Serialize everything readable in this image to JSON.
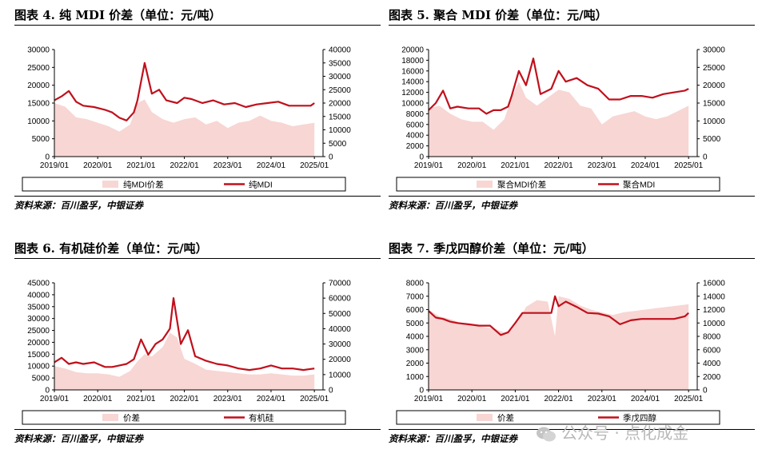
{
  "colors": {
    "area": "#f7d6d4",
    "line": "#c0101c",
    "text": "#000000"
  },
  "watermark": {
    "text": "公众号 · 点化成金",
    "icon": "wechat-icon"
  },
  "chart_data": [
    {
      "figure": "图表 4. 纯 MDI 价差（单位：元/吨）",
      "source": "资料来源：百川盈孚，中银证券",
      "type": "area+line",
      "x_ticks": [
        "2019/01",
        "2020/01",
        "2021/01",
        "2022/01",
        "2023/01",
        "2024/01",
        "2025/01"
      ],
      "left_axis": {
        "min": 0,
        "max": 30000,
        "ticks": [
          "0",
          "5000",
          "10000",
          "15000",
          "20000",
          "25000",
          "30000"
        ]
      },
      "right_axis": {
        "min": 0,
        "max": 40000,
        "ticks": [
          "0",
          "5000",
          "10000",
          "15000",
          "20000",
          "25000",
          "30000",
          "35000",
          "40000"
        ]
      },
      "series": [
        {
          "name": "纯MDI价差",
          "kind": "area",
          "axis": "left",
          "x": [
            "2019/01",
            "2019/04",
            "2019/07",
            "2019/10",
            "2020/01",
            "2020/04",
            "2020/07",
            "2020/10",
            "2020/12",
            "2021/02",
            "2021/04",
            "2021/07",
            "2021/10",
            "2022/01",
            "2022/04",
            "2022/07",
            "2022/10",
            "2023/01",
            "2023/04",
            "2023/07",
            "2023/10",
            "2024/01",
            "2024/04",
            "2024/07",
            "2024/10",
            "2025/01"
          ],
          "values": [
            15000,
            14000,
            11000,
            10500,
            9500,
            8500,
            7000,
            9000,
            15000,
            16000,
            12500,
            10500,
            9500,
            10500,
            11000,
            9000,
            10000,
            8000,
            9500,
            10000,
            11500,
            10000,
            9500,
            8500,
            9000,
            9500
          ]
        },
        {
          "name": "纯MDI",
          "kind": "line",
          "axis": "right",
          "x": [
            "2019/01",
            "2019/03",
            "2019/05",
            "2019/07",
            "2019/09",
            "2019/12",
            "2020/03",
            "2020/05",
            "2020/07",
            "2020/09",
            "2020/11",
            "2020/12",
            "2021/02",
            "2021/04",
            "2021/06",
            "2021/08",
            "2021/11",
            "2022/01",
            "2022/03",
            "2022/06",
            "2022/09",
            "2022/12",
            "2023/03",
            "2023/06",
            "2023/09",
            "2023/12",
            "2024/03",
            "2024/06",
            "2024/09",
            "2024/12",
            "2025/01"
          ],
          "values": [
            21000,
            22500,
            24500,
            20500,
            19000,
            18500,
            17500,
            16500,
            14500,
            13500,
            16500,
            21000,
            35000,
            23500,
            25000,
            21000,
            20000,
            22000,
            21500,
            20000,
            21000,
            19500,
            20000,
            18500,
            19500,
            20000,
            20500,
            19000,
            19000,
            19000,
            20000
          ]
        }
      ],
      "legend": [
        "纯MDI价差",
        "纯MDI"
      ]
    },
    {
      "figure": "图表 5. 聚合 MDI 价差（单位：元/吨）",
      "source": "资料来源：百川盈孚，中银证券",
      "type": "area+line",
      "x_ticks": [
        "2019/01",
        "2020/01",
        "2021/01",
        "2022/01",
        "2023/01",
        "2024/01",
        "2025/01"
      ],
      "left_axis": {
        "min": 0,
        "max": 20000,
        "ticks": [
          "0",
          "2000",
          "4000",
          "6000",
          "8000",
          "10000",
          "12000",
          "14000",
          "16000",
          "18000",
          "20000"
        ]
      },
      "right_axis": {
        "min": 0,
        "max": 30000,
        "ticks": [
          "0",
          "5000",
          "10000",
          "15000",
          "20000",
          "25000",
          "30000"
        ]
      },
      "series": [
        {
          "name": "聚合MDI价差",
          "kind": "area",
          "axis": "left",
          "x": [
            "2019/01",
            "2019/04",
            "2019/07",
            "2019/10",
            "2020/01",
            "2020/04",
            "2020/07",
            "2020/10",
            "2020/12",
            "2021/02",
            "2021/04",
            "2021/07",
            "2021/10",
            "2022/01",
            "2022/04",
            "2022/07",
            "2022/10",
            "2023/01",
            "2023/04",
            "2023/07",
            "2023/10",
            "2024/01",
            "2024/04",
            "2024/07",
            "2024/10",
            "2025/01"
          ],
          "values": [
            9000,
            9500,
            8000,
            7000,
            6500,
            6500,
            5000,
            7000,
            11000,
            14000,
            11000,
            9500,
            11000,
            12500,
            12000,
            9500,
            9000,
            6000,
            7500,
            8000,
            8500,
            7500,
            7000,
            7500,
            8500,
            9500
          ]
        },
        {
          "name": "聚合MDI",
          "kind": "line",
          "axis": "right",
          "x": [
            "2019/01",
            "2019/03",
            "2019/05",
            "2019/07",
            "2019/09",
            "2019/12",
            "2020/03",
            "2020/05",
            "2020/07",
            "2020/09",
            "2020/11",
            "2020/12",
            "2021/02",
            "2021/04",
            "2021/06",
            "2021/08",
            "2021/11",
            "2022/01",
            "2022/03",
            "2022/06",
            "2022/09",
            "2022/12",
            "2023/03",
            "2023/06",
            "2023/09",
            "2023/12",
            "2024/03",
            "2024/06",
            "2024/09",
            "2024/12",
            "2025/01"
          ],
          "values": [
            13000,
            15000,
            18500,
            13500,
            14000,
            13500,
            13500,
            12000,
            13000,
            13000,
            14000,
            17000,
            24000,
            20000,
            27500,
            17500,
            19000,
            24000,
            21000,
            22000,
            20000,
            19000,
            16000,
            16000,
            17000,
            17000,
            16500,
            17500,
            18000,
            18500,
            19000
          ]
        }
      ],
      "legend": [
        "聚合MDI价差",
        "聚合MDI"
      ]
    },
    {
      "figure": "图表 6. 有机硅价差（单位：元/吨）",
      "source": "资料来源：百川盈孚，中银证券",
      "type": "area+line",
      "x_ticks": [
        "2019/01",
        "2020/01",
        "2021/01",
        "2022/01",
        "2023/01",
        "2024/01",
        "2025/01"
      ],
      "left_axis": {
        "min": 0,
        "max": 45000,
        "ticks": [
          "0",
          "5000",
          "10000",
          "15000",
          "20000",
          "25000",
          "30000",
          "35000",
          "40000",
          "45000"
        ]
      },
      "right_axis": {
        "min": 0,
        "max": 70000,
        "ticks": [
          "0",
          "10000",
          "20000",
          "30000",
          "40000",
          "50000",
          "60000",
          "70000"
        ]
      },
      "series": [
        {
          "name": "价差",
          "kind": "area",
          "axis": "left",
          "x": [
            "2019/01",
            "2019/04",
            "2019/07",
            "2019/10",
            "2020/01",
            "2020/04",
            "2020/07",
            "2020/10",
            "2020/12",
            "2021/02",
            "2021/04",
            "2021/07",
            "2021/09",
            "2021/11",
            "2022/01",
            "2022/04",
            "2022/07",
            "2022/10",
            "2023/01",
            "2023/04",
            "2023/07",
            "2023/10",
            "2024/01",
            "2024/04",
            "2024/07",
            "2024/10",
            "2025/01"
          ],
          "values": [
            10000,
            9000,
            7500,
            7000,
            7000,
            6500,
            5500,
            8000,
            12000,
            15000,
            14000,
            18000,
            24000,
            22000,
            13000,
            11000,
            8500,
            8000,
            7500,
            7000,
            6500,
            6500,
            7000,
            6500,
            6000,
            6000,
            6500
          ]
        },
        {
          "name": "有机硅",
          "kind": "line",
          "axis": "right",
          "x": [
            "2019/01",
            "2019/03",
            "2019/05",
            "2019/07",
            "2019/09",
            "2019/12",
            "2020/03",
            "2020/05",
            "2020/07",
            "2020/09",
            "2020/11",
            "2021/01",
            "2021/03",
            "2021/05",
            "2021/07",
            "2021/09",
            "2021/10",
            "2021/12",
            "2022/02",
            "2022/04",
            "2022/07",
            "2022/10",
            "2023/01",
            "2023/04",
            "2023/07",
            "2023/10",
            "2024/01",
            "2024/04",
            "2024/07",
            "2024/10",
            "2025/01"
          ],
          "values": [
            18000,
            21000,
            17000,
            18000,
            17000,
            18000,
            15000,
            15000,
            16000,
            17000,
            20000,
            33000,
            23000,
            30000,
            33000,
            40000,
            60000,
            30000,
            39000,
            22000,
            19000,
            17000,
            16000,
            14000,
            13000,
            14000,
            16000,
            14000,
            14000,
            13000,
            14000
          ]
        }
      ],
      "legend": [
        "价差",
        "有机硅"
      ]
    },
    {
      "figure": "图表 7. 季戊四醇价差（单位：元/吨）",
      "source": "资料来源：百川盈孚，中银证券",
      "type": "area+line",
      "x_ticks": [
        "2019/01",
        "2020/01",
        "2021/01",
        "2022/01",
        "2023/01",
        "2024/01",
        "2025/01"
      ],
      "left_axis": {
        "min": 0,
        "max": 8000,
        "ticks": [
          "0",
          "1000",
          "2000",
          "3000",
          "4000",
          "5000",
          "6000",
          "7000",
          "8000"
        ]
      },
      "right_axis": {
        "min": 0,
        "max": 16000,
        "ticks": [
          "0",
          "2000",
          "4000",
          "6000",
          "8000",
          "10000",
          "12000",
          "14000",
          "16000"
        ]
      },
      "series": [
        {
          "name": "价差",
          "kind": "area",
          "axis": "left",
          "x": [
            "2019/01",
            "2019/04",
            "2019/07",
            "2019/10",
            "2020/01",
            "2020/04",
            "2020/07",
            "2020/10",
            "2020/12",
            "2021/02",
            "2021/04",
            "2021/07",
            "2021/10",
            "2021/12",
            "2022/01",
            "2022/04",
            "2022/07",
            "2022/10",
            "2023/01",
            "2023/04",
            "2023/07",
            "2023/10",
            "2024/01",
            "2024/04",
            "2024/07",
            "2024/10",
            "2025/01"
          ],
          "values": [
            6000,
            5500,
            5300,
            5000,
            4800,
            4700,
            4600,
            4300,
            4500,
            5200,
            6200,
            6700,
            6600,
            4000,
            7000,
            6800,
            6300,
            6000,
            5800,
            5600,
            5800,
            5900,
            6000,
            6100,
            6200,
            6300,
            6400
          ]
        },
        {
          "name": "季戊四醇",
          "kind": "line",
          "axis": "right",
          "x": [
            "2019/01",
            "2019/03",
            "2019/05",
            "2019/07",
            "2019/09",
            "2019/12",
            "2020/03",
            "2020/06",
            "2020/09",
            "2020/11",
            "2021/01",
            "2021/03",
            "2021/06",
            "2021/09",
            "2021/11",
            "2021/12",
            "2022/01",
            "2022/03",
            "2022/06",
            "2022/09",
            "2022/12",
            "2023/03",
            "2023/06",
            "2023/09",
            "2023/12",
            "2024/03",
            "2024/06",
            "2024/09",
            "2024/12",
            "2025/01"
          ],
          "values": [
            11800,
            10800,
            10600,
            10200,
            10000,
            9800,
            9600,
            9600,
            8200,
            8600,
            10000,
            11500,
            11500,
            11500,
            11500,
            14000,
            12500,
            13200,
            12400,
            11500,
            11400,
            11000,
            9800,
            10400,
            10600,
            10600,
            10600,
            10600,
            11000,
            11500
          ]
        }
      ],
      "legend": [
        "价差",
        "季戊四醇"
      ]
    }
  ]
}
